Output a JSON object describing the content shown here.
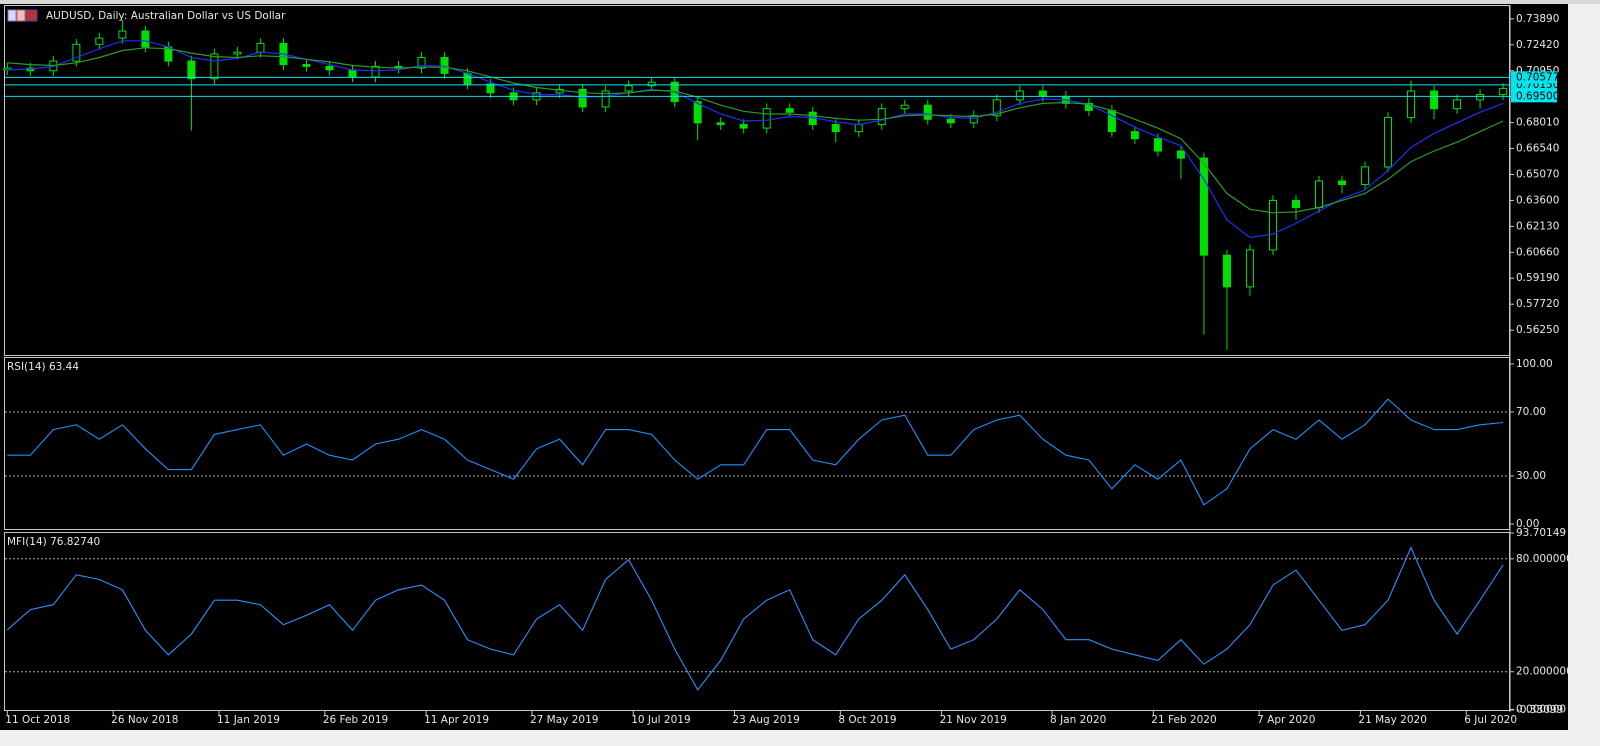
{
  "chart_data": [
    {
      "type": "candlestick",
      "title": "AUDUSD, Daily:  Australian Dollar vs US Dollar",
      "x": [
        "2018-10-11",
        "2018-10-21",
        "2018-10-31",
        "2018-11-10",
        "2018-11-20",
        "2018-11-30",
        "2018-12-10",
        "2018-12-20",
        "2018-12-30",
        "2019-01-09",
        "2019-01-19",
        "2019-01-29",
        "2019-02-08",
        "2019-02-18",
        "2019-02-28",
        "2019-03-10",
        "2019-03-20",
        "2019-03-30",
        "2019-04-09",
        "2019-04-19",
        "2019-04-29",
        "2019-05-09",
        "2019-05-19",
        "2019-05-29",
        "2019-06-08",
        "2019-06-18",
        "2019-06-28",
        "2019-07-08",
        "2019-07-18",
        "2019-07-28",
        "2019-08-07",
        "2019-08-17",
        "2019-08-27",
        "2019-09-06",
        "2019-09-16",
        "2019-09-26",
        "2019-10-06",
        "2019-10-16",
        "2019-10-26",
        "2019-11-05",
        "2019-11-15",
        "2019-11-25",
        "2019-12-05",
        "2019-12-15",
        "2019-12-25",
        "2020-01-04",
        "2020-01-14",
        "2020-01-24",
        "2020-02-03",
        "2020-02-13",
        "2020-02-23",
        "2020-03-04",
        "2020-03-14",
        "2020-03-24",
        "2020-04-03",
        "2020-04-13",
        "2020-04-23",
        "2020-05-03",
        "2020-05-13",
        "2020-05-23",
        "2020-06-02",
        "2020-06-12",
        "2020-06-22",
        "2020-07-02",
        "2020-07-12",
        "2020-07-22"
      ],
      "open": [
        0.71,
        0.711,
        0.7095,
        0.715,
        0.7245,
        0.728,
        0.732,
        0.723,
        0.715,
        0.705,
        0.719,
        0.72,
        0.725,
        0.713,
        0.712,
        0.71,
        0.706,
        0.712,
        0.711,
        0.717,
        0.708,
        0.702,
        0.697,
        0.693,
        0.697,
        0.699,
        0.689,
        0.698,
        0.701,
        0.703,
        0.692,
        0.68,
        0.679,
        0.677,
        0.688,
        0.686,
        0.679,
        0.675,
        0.679,
        0.688,
        0.69,
        0.682,
        0.68,
        0.684,
        0.693,
        0.698,
        0.695,
        0.691,
        0.687,
        0.675,
        0.671,
        0.664,
        0.66,
        0.605,
        0.587,
        0.608,
        0.636,
        0.632,
        0.647,
        0.645,
        0.655,
        0.683,
        0.698,
        0.688,
        0.693,
        0.696
      ],
      "high": [
        0.714,
        0.714,
        0.718,
        0.7275,
        0.731,
        0.7385,
        0.735,
        0.726,
        0.718,
        0.722,
        0.723,
        0.728,
        0.728,
        0.716,
        0.715,
        0.713,
        0.715,
        0.715,
        0.72,
        0.72,
        0.711,
        0.705,
        0.7,
        0.7,
        0.702,
        0.702,
        0.701,
        0.704,
        0.706,
        0.706,
        0.695,
        0.683,
        0.682,
        0.691,
        0.691,
        0.689,
        0.682,
        0.682,
        0.691,
        0.693,
        0.693,
        0.685,
        0.687,
        0.696,
        0.701,
        0.701,
        0.698,
        0.694,
        0.69,
        0.678,
        0.674,
        0.667,
        0.663,
        0.608,
        0.611,
        0.639,
        0.639,
        0.65,
        0.65,
        0.658,
        0.686,
        0.704,
        0.701,
        0.696,
        0.699,
        0.7025
      ],
      "low": [
        0.707,
        0.7065,
        0.7065,
        0.712,
        0.7215,
        0.725,
        0.72,
        0.712,
        0.6756,
        0.702,
        0.716,
        0.717,
        0.71,
        0.709,
        0.707,
        0.703,
        0.703,
        0.708,
        0.708,
        0.705,
        0.699,
        0.694,
        0.69,
        0.69,
        0.694,
        0.686,
        0.686,
        0.695,
        0.698,
        0.689,
        0.67,
        0.676,
        0.674,
        0.674,
        0.683,
        0.676,
        0.669,
        0.672,
        0.676,
        0.685,
        0.679,
        0.677,
        0.677,
        0.681,
        0.69,
        0.692,
        0.688,
        0.684,
        0.672,
        0.668,
        0.661,
        0.648,
        0.56,
        0.5513,
        0.582,
        0.605,
        0.625,
        0.629,
        0.64,
        0.642,
        0.652,
        0.68,
        0.682,
        0.685,
        0.688,
        0.693
      ],
      "close": [
        0.711,
        0.7095,
        0.715,
        0.7245,
        0.728,
        0.732,
        0.723,
        0.715,
        0.705,
        0.719,
        0.72,
        0.725,
        0.713,
        0.712,
        0.71,
        0.706,
        0.712,
        0.711,
        0.717,
        0.708,
        0.702,
        0.697,
        0.693,
        0.697,
        0.699,
        0.689,
        0.698,
        0.701,
        0.703,
        0.692,
        0.68,
        0.679,
        0.677,
        0.688,
        0.686,
        0.679,
        0.675,
        0.679,
        0.688,
        0.69,
        0.682,
        0.68,
        0.684,
        0.693,
        0.698,
        0.695,
        0.691,
        0.687,
        0.675,
        0.671,
        0.664,
        0.66,
        0.605,
        0.587,
        0.608,
        0.636,
        0.632,
        0.647,
        0.645,
        0.655,
        0.683,
        0.698,
        0.688,
        0.693,
        0.696,
        0.6995
      ],
      "color": "#00e000",
      "moving_averages": [
        {
          "color": "#1f2fff",
          "values": [
            0.71,
            0.7105,
            0.712,
            0.717,
            0.722,
            0.7265,
            0.7265,
            0.723,
            0.717,
            0.715,
            0.7165,
            0.72,
            0.719,
            0.716,
            0.713,
            0.71,
            0.7095,
            0.71,
            0.7125,
            0.712,
            0.708,
            0.703,
            0.6985,
            0.696,
            0.696,
            0.6945,
            0.695,
            0.697,
            0.699,
            0.6975,
            0.691,
            0.685,
            0.681,
            0.6815,
            0.6835,
            0.683,
            0.6805,
            0.679,
            0.6815,
            0.685,
            0.685,
            0.683,
            0.6825,
            0.686,
            0.691,
            0.6935,
            0.693,
            0.6905,
            0.684,
            0.6775,
            0.672,
            0.667,
            0.648,
            0.625,
            0.615,
            0.617,
            0.623,
            0.63,
            0.637,
            0.642,
            0.653,
            0.666,
            0.674,
            0.68,
            0.686,
            0.691
          ]
        },
        {
          "color": "#2e9a2e",
          "values": [
            0.714,
            0.713,
            0.7125,
            0.714,
            0.717,
            0.721,
            0.7225,
            0.722,
            0.7195,
            0.7175,
            0.717,
            0.718,
            0.7175,
            0.716,
            0.7145,
            0.7125,
            0.7115,
            0.711,
            0.7115,
            0.7115,
            0.7095,
            0.706,
            0.7025,
            0.7,
            0.6985,
            0.697,
            0.6965,
            0.697,
            0.6985,
            0.698,
            0.6945,
            0.69,
            0.6865,
            0.685,
            0.685,
            0.684,
            0.6825,
            0.6815,
            0.682,
            0.684,
            0.6845,
            0.684,
            0.6835,
            0.685,
            0.6885,
            0.691,
            0.6915,
            0.6905,
            0.687,
            0.682,
            0.677,
            0.671,
            0.657,
            0.64,
            0.631,
            0.629,
            0.6295,
            0.632,
            0.636,
            0.64,
            0.648,
            0.658,
            0.664,
            0.669,
            0.675,
            0.681
          ]
        }
      ],
      "levels": [
        {
          "value": 0.7015,
          "label": "0.70150"
        },
        {
          "value": 0.70577,
          "label": "0.70577"
        },
        {
          "value": 0.695,
          "label": "0.69500"
        }
      ],
      "level_color": "#00e5ee",
      "xlim": [
        "2018-10-10",
        "2020-07-25"
      ],
      "xticks": [
        {
          "value": "2018-10-11",
          "label": "11 Oct 2018"
        },
        {
          "value": "2018-11-26",
          "label": "26 Nov 2018"
        },
        {
          "value": "2019-01-11",
          "label": "11 Jan 2019"
        },
        {
          "value": "2019-02-26",
          "label": "26 Feb 2019"
        },
        {
          "value": "2019-04-11",
          "label": "11 Apr 2019"
        },
        {
          "value": "2019-05-27",
          "label": "27 May 2019"
        },
        {
          "value": "2019-07-10",
          "label": "10 Jul 2019"
        },
        {
          "value": "2019-08-23",
          "label": "23 Aug 2019"
        },
        {
          "value": "2019-10-08",
          "label": "8 Oct 2019"
        },
        {
          "value": "2019-11-21",
          "label": "21 Nov 2019"
        },
        {
          "value": "2020-01-08",
          "label": "8 Jan 2020"
        },
        {
          "value": "2020-02-21",
          "label": "21 Feb 2020"
        },
        {
          "value": "2020-04-07",
          "label": "7 Apr 2020"
        },
        {
          "value": "2020-05-21",
          "label": "21 May 2020"
        },
        {
          "value": "2020-07-06",
          "label": "6 Jul 2020"
        }
      ],
      "ylim": [
        0.5484,
        0.7462
      ],
      "yticks": [
        {
          "value": 0.7389,
          "label": "0.73890"
        },
        {
          "value": 0.7242,
          "label": "0.72420"
        },
        {
          "value": 0.7095,
          "label": "0.70950"
        },
        {
          "value": 0.6948,
          "label": "0.69480"
        },
        {
          "value": 0.6801,
          "label": "0.68010"
        },
        {
          "value": 0.6654,
          "label": "0.66540"
        },
        {
          "value": 0.6507,
          "label": "0.65070"
        },
        {
          "value": 0.636,
          "label": "0.63600"
        },
        {
          "value": 0.6213,
          "label": "0.62130"
        },
        {
          "value": 0.6066,
          "label": "0.60660"
        },
        {
          "value": 0.5919,
          "label": "0.59190"
        },
        {
          "value": 0.5772,
          "label": "0.57720"
        },
        {
          "value": 0.5625,
          "label": "0.56250"
        }
      ]
    },
    {
      "type": "line",
      "title": "RSI(14) 63.44",
      "x": [
        "2018-10-11",
        "2018-10-21",
        "2018-10-31",
        "2018-11-10",
        "2018-11-20",
        "2018-11-30",
        "2018-12-10",
        "2018-12-20",
        "2018-12-30",
        "2019-01-09",
        "2019-01-19",
        "2019-01-29",
        "2019-02-08",
        "2019-02-18",
        "2019-02-28",
        "2019-03-10",
        "2019-03-20",
        "2019-03-30",
        "2019-04-09",
        "2019-04-19",
        "2019-04-29",
        "2019-05-09",
        "2019-05-19",
        "2019-05-29",
        "2019-06-08",
        "2019-06-18",
        "2019-06-28",
        "2019-07-08",
        "2019-07-18",
        "2019-07-28",
        "2019-08-07",
        "2019-08-17",
        "2019-08-27",
        "2019-09-06",
        "2019-09-16",
        "2019-09-26",
        "2019-10-06",
        "2019-10-16",
        "2019-10-26",
        "2019-11-05",
        "2019-11-15",
        "2019-11-25",
        "2019-12-05",
        "2019-12-15",
        "2019-12-25",
        "2020-01-04",
        "2020-01-14",
        "2020-01-24",
        "2020-02-03",
        "2020-02-13",
        "2020-02-23",
        "2020-03-04",
        "2020-03-14",
        "2020-03-24",
        "2020-04-03",
        "2020-04-13",
        "2020-04-23",
        "2020-05-03",
        "2020-05-13",
        "2020-05-23",
        "2020-06-02",
        "2020-06-12",
        "2020-06-22",
        "2020-07-02",
        "2020-07-12",
        "2020-07-22"
      ],
      "values": [
        43,
        43,
        59,
        62,
        53,
        62,
        47,
        34,
        34,
        56,
        59,
        62,
        43,
        50,
        43,
        40,
        50,
        53,
        59,
        53,
        40,
        34,
        28,
        47,
        53,
        37,
        59,
        59,
        56,
        40,
        28,
        37,
        37,
        59,
        59,
        40,
        37,
        53,
        65,
        68,
        43,
        43,
        59,
        65,
        68,
        53,
        43,
        40,
        22,
        37,
        28,
        40,
        12,
        22,
        47,
        59,
        53,
        65,
        53,
        62,
        78,
        65,
        59,
        59,
        62,
        63.44
      ],
      "color": "#1e90ff",
      "xlim": [
        "2018-10-10",
        "2020-07-25"
      ],
      "ylim": [
        -3.1,
        103.7
      ],
      "yticks": [
        {
          "value": 100,
          "label": "100.00"
        },
        {
          "value": 70,
          "label": "70.00"
        },
        {
          "value": 30,
          "label": "30.00"
        },
        {
          "value": 0,
          "label": "0.00"
        }
      ],
      "levels": [
        70,
        30
      ]
    },
    {
      "type": "line",
      "title": "MFI(14) 76.82740",
      "x": [
        "2018-10-11",
        "2018-10-21",
        "2018-10-31",
        "2018-11-10",
        "2018-11-20",
        "2018-11-30",
        "2018-12-10",
        "2018-12-20",
        "2018-12-30",
        "2019-01-09",
        "2019-01-19",
        "2019-01-29",
        "2019-02-08",
        "2019-02-18",
        "2019-02-28",
        "2019-03-10",
        "2019-03-20",
        "2019-03-30",
        "2019-04-09",
        "2019-04-19",
        "2019-04-29",
        "2019-05-09",
        "2019-05-19",
        "2019-05-29",
        "2019-06-08",
        "2019-06-18",
        "2019-06-28",
        "2019-07-08",
        "2019-07-18",
        "2019-07-28",
        "2019-08-07",
        "2019-08-17",
        "2019-08-27",
        "2019-09-06",
        "2019-09-16",
        "2019-09-26",
        "2019-10-06",
        "2019-10-16",
        "2019-10-26",
        "2019-11-05",
        "2019-11-15",
        "2019-11-25",
        "2019-12-05",
        "2019-12-15",
        "2019-12-25",
        "2020-01-04",
        "2020-01-14",
        "2020-01-24",
        "2020-02-03",
        "2020-02-13",
        "2020-02-23",
        "2020-03-04",
        "2020-03-14",
        "2020-03-24",
        "2020-04-03",
        "2020-04-13",
        "2020-04-23",
        "2020-05-03",
        "2020-05-13",
        "2020-05-23",
        "2020-06-02",
        "2020-06-12",
        "2020-06-22",
        "2020-07-02",
        "2020-07-12",
        "2020-07-22"
      ],
      "values": [
        42.3,
        53,
        55.6,
        71.5,
        69,
        63.5,
        42,
        29,
        40,
        58,
        58,
        55.6,
        45,
        50,
        55.6,
        42,
        58,
        63.5,
        66,
        58,
        37,
        32,
        29,
        48,
        55.6,
        42,
        69,
        79.5,
        58,
        32,
        10.4,
        26,
        48,
        58,
        63.5,
        37,
        29,
        48,
        58,
        71.5,
        53,
        32,
        37,
        48,
        63.5,
        53,
        37,
        37,
        32,
        29,
        26,
        37,
        24,
        32,
        45,
        66,
        74,
        58,
        42,
        45,
        58,
        86,
        58,
        40,
        58,
        76.8274
      ],
      "color": "#2f8fff",
      "xlim": [
        "2018-10-10",
        "2020-07-25"
      ],
      "ylim": [
        -0.33099,
        93.70149
      ],
      "yticks": [
        93.70149,
        {
          "value": 80,
          "label": "80.000000"
        },
        {
          "value": 20,
          "label": "20.000000"
        },
        {
          "value": 0,
          "label": "0.000000"
        },
        -0.33099
      ],
      "levels": [
        80,
        20
      ]
    }
  ]
}
